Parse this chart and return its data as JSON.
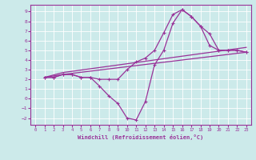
{
  "background_color": "#cceaea",
  "line_color": "#993399",
  "grid_color": "#ffffff",
  "xlabel": "Windchill (Refroidissement éolien,°C)",
  "xlim": [
    -0.5,
    23.5
  ],
  "ylim": [
    -2.7,
    9.7
  ],
  "xticks": [
    0,
    1,
    2,
    3,
    4,
    5,
    6,
    7,
    8,
    9,
    10,
    11,
    12,
    13,
    14,
    15,
    16,
    17,
    18,
    19,
    20,
    21,
    22,
    23
  ],
  "yticks": [
    -2,
    -1,
    0,
    1,
    2,
    3,
    4,
    5,
    6,
    7,
    8,
    9
  ],
  "line1_x": [
    1,
    2,
    3,
    4,
    5,
    6,
    7,
    8,
    9,
    10,
    11,
    12,
    13,
    14,
    15,
    16,
    17,
    18,
    19,
    20,
    21,
    22,
    23
  ],
  "line1_y": [
    2.2,
    2.2,
    2.5,
    2.5,
    2.2,
    2.2,
    1.3,
    0.3,
    -0.5,
    -2.0,
    -2.2,
    -0.3,
    3.5,
    5.0,
    7.8,
    9.2,
    8.5,
    7.5,
    5.5,
    5.0,
    5.0,
    5.0,
    4.8
  ],
  "line2_x": [
    1,
    2,
    3,
    4,
    5,
    6,
    7,
    8,
    9,
    10,
    11,
    12,
    13,
    14,
    15,
    16,
    17,
    18,
    19,
    20,
    21,
    22,
    23
  ],
  "line2_y": [
    2.2,
    2.2,
    2.5,
    2.5,
    2.2,
    2.2,
    2.0,
    2.0,
    2.0,
    3.0,
    3.8,
    4.2,
    5.0,
    6.8,
    8.7,
    9.2,
    8.5,
    7.5,
    6.7,
    5.0,
    5.0,
    5.0,
    4.8
  ],
  "line3_x": [
    1,
    3,
    23
  ],
  "line3_y": [
    2.2,
    2.5,
    4.8
  ],
  "line4_x": [
    1,
    3,
    23
  ],
  "line4_y": [
    2.2,
    2.7,
    5.3
  ],
  "label_color": "#993399",
  "tick_color": "#993399"
}
